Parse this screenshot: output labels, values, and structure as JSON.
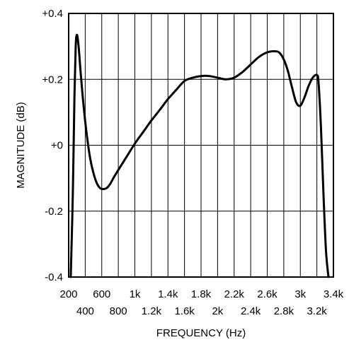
{
  "chart_data": {
    "type": "line",
    "title": "",
    "xlabel": "FREQUENCY (Hz)",
    "ylabel": "MAGNITUDE (dB)",
    "xlim": [
      200,
      3400
    ],
    "ylim": [
      -0.4,
      0.4
    ],
    "x_ticks": [
      200,
      400,
      600,
      800,
      1000,
      1200,
      1400,
      1600,
      1800,
      2000,
      2200,
      2400,
      2600,
      2800,
      3000,
      3200,
      3400
    ],
    "x_tick_labels": [
      "200",
      "400",
      "600",
      "800",
      "1k",
      "1.2k",
      "1.4k",
      "1.6k",
      "1.8k",
      "2k",
      "2.2k",
      "2.4k",
      "2.6k",
      "2.8k",
      "3k",
      "3.2k",
      "3.4k"
    ],
    "y_ticks": [
      -0.4,
      -0.2,
      0,
      0.2,
      0.4
    ],
    "y_tick_labels": [
      "-0.4",
      "-0.2",
      "+0",
      "+0.2",
      "+0.4"
    ],
    "grid": true,
    "series": [
      {
        "color": "#000000",
        "x": [
          225,
          250,
          270,
          285,
          300,
          320,
          345,
          380,
          420,
          460,
          500,
          540,
          580,
          620,
          660,
          700,
          740,
          800,
          900,
          1000,
          1100,
          1200,
          1300,
          1400,
          1500,
          1600,
          1700,
          1800,
          1900,
          2000,
          2100,
          2200,
          2300,
          2400,
          2500,
          2600,
          2700,
          2750,
          2800,
          2850,
          2900,
          2950,
          3000,
          3050,
          3100,
          3150,
          3200,
          3220,
          3250,
          3280,
          3310,
          3340
        ],
        "y": [
          -0.4,
          -0.15,
          0.15,
          0.3,
          0.335,
          0.3,
          0.22,
          0.12,
          0.03,
          -0.04,
          -0.085,
          -0.115,
          -0.13,
          -0.133,
          -0.13,
          -0.118,
          -0.1,
          -0.075,
          -0.035,
          0.005,
          0.04,
          0.075,
          0.107,
          0.14,
          0.168,
          0.195,
          0.205,
          0.21,
          0.21,
          0.205,
          0.2,
          0.205,
          0.222,
          0.245,
          0.268,
          0.282,
          0.285,
          0.28,
          0.26,
          0.225,
          0.175,
          0.13,
          0.12,
          0.145,
          0.18,
          0.205,
          0.213,
          0.19,
          0.05,
          -0.15,
          -0.32,
          -0.4
        ]
      }
    ]
  }
}
